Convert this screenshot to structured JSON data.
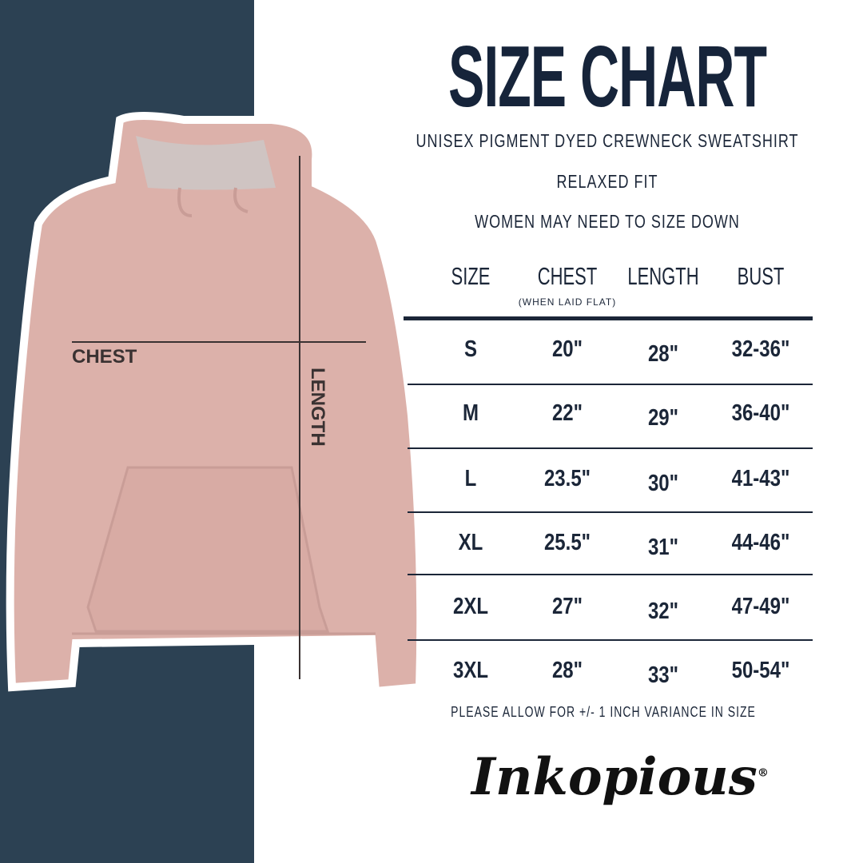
{
  "title": "SIZE CHART",
  "subtitles": [
    "UNISEX PIGMENT DYED CREWNECK SWEATSHIRT",
    "RELAXED FIT",
    "WOMEN MAY NEED TO SIZE DOWN"
  ],
  "table": {
    "headers": [
      "SIZE",
      "CHEST",
      "LENGTH",
      "BUST"
    ],
    "chest_note": "(WHEN LAID FLAT)",
    "rows": [
      [
        "S",
        "20\"",
        "28\"",
        "32-36\""
      ],
      [
        "M",
        "22\"",
        "29\"",
        "36-40\""
      ],
      [
        "L",
        "23.5\"",
        "30\"",
        "41-43\""
      ],
      [
        "XL",
        "25.5\"",
        "31\"",
        "44-46\""
      ],
      [
        "2XL",
        "27\"",
        "32\"",
        "47-49\""
      ],
      [
        "3XL",
        "28\"",
        "33\"",
        "50-54\""
      ]
    ]
  },
  "footnote": "PLEASE ALLOW FOR +/- 1 INCH VARIANCE IN SIZE",
  "diagram": {
    "chest_label": "CHEST",
    "length_label": "LENGTH"
  },
  "brand": {
    "logo_text": "Inkopious",
    "registered": "®"
  },
  "colors": {
    "navy_panel": "#2c4153",
    "text": "#1b2638",
    "garment": "#dcb1aa"
  }
}
